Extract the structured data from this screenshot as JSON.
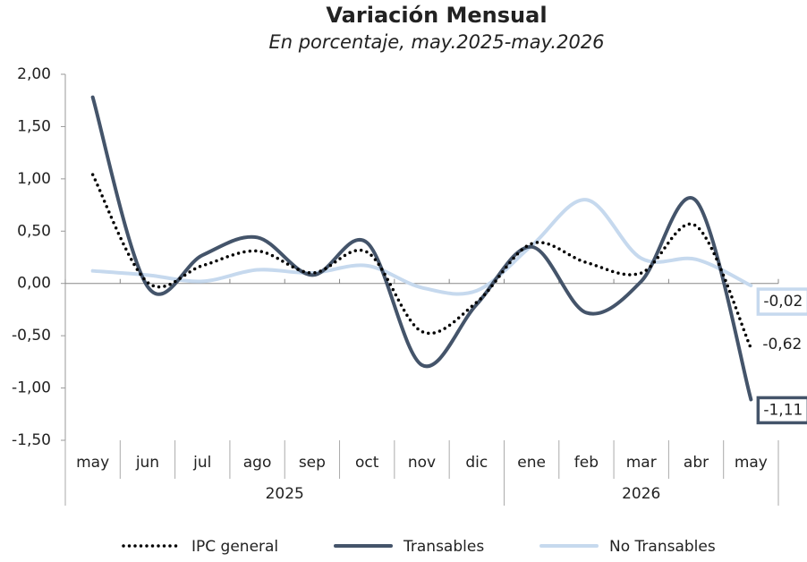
{
  "chart_data": {
    "type": "line",
    "title": "Variación Mensual",
    "subtitle": "En porcentaje, may.2025-may.2026",
    "categories": [
      "may",
      "jun",
      "jul",
      "ago",
      "sep",
      "oct",
      "nov",
      "dic",
      "ene",
      "feb",
      "mar",
      "abr",
      "may"
    ],
    "category_groups": [
      {
        "label": "2025",
        "size": 8
      },
      {
        "label": "2026",
        "size": 5
      }
    ],
    "ylim": [
      -1.5,
      2.0
    ],
    "yticks": [
      {
        "value": -1.5,
        "label": "-1,50"
      },
      {
        "value": -1.0,
        "label": "-1,00"
      },
      {
        "value": -0.5,
        "label": "-0,50"
      },
      {
        "value": 0,
        "label": "0,00"
      },
      {
        "value": 0.5,
        "label": "0,50"
      },
      {
        "value": 1.0,
        "label": "1,00"
      },
      {
        "value": 1.5,
        "label": "1,50"
      },
      {
        "value": 2.0,
        "label": "2,00"
      }
    ],
    "legend": "bottom",
    "series": [
      {
        "name": "No Transables",
        "color": "#c6d9ee",
        "style": "solid",
        "values": [
          0.12,
          0.08,
          0.02,
          0.13,
          0.1,
          0.17,
          -0.04,
          -0.07,
          0.36,
          0.8,
          0.24,
          0.23,
          -0.02
        ],
        "value_labels": [
          null,
          null,
          null,
          null,
          null,
          null,
          null,
          null,
          null,
          null,
          null,
          null,
          "-0,02"
        ]
      },
      {
        "name": "Transables",
        "color": "#44546a",
        "style": "solid",
        "values": [
          1.78,
          -0.03,
          0.27,
          0.44,
          0.08,
          0.39,
          -0.78,
          -0.2,
          0.35,
          -0.28,
          0.02,
          0.79,
          -1.11
        ],
        "value_labels": [
          null,
          null,
          null,
          null,
          null,
          null,
          null,
          null,
          null,
          null,
          null,
          null,
          "-1,11"
        ]
      },
      {
        "name": "IPC general",
        "color": "#000000",
        "style": "dotted",
        "values": [
          1.04,
          0.01,
          0.17,
          0.31,
          0.1,
          0.3,
          -0.46,
          -0.18,
          0.38,
          0.2,
          0.1,
          0.55,
          -0.62
        ],
        "value_labels": [
          null,
          null,
          null,
          null,
          null,
          null,
          null,
          null,
          null,
          null,
          null,
          null,
          "-0,62"
        ]
      }
    ]
  }
}
